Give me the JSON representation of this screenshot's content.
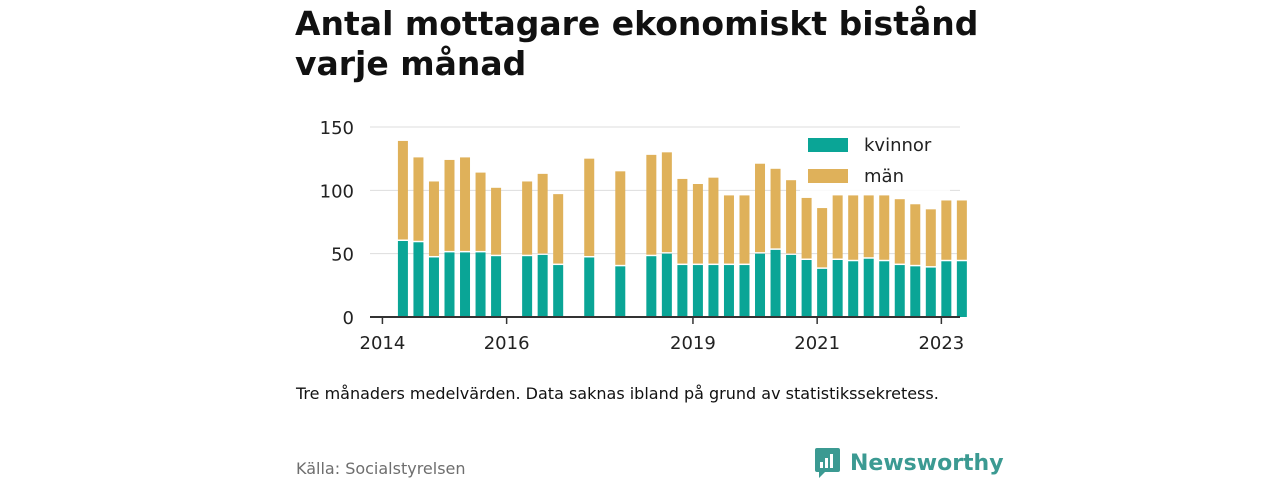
{
  "title": "Antal mottagare ekonomiskt bistånd varje månad",
  "note": "Tre månaders medelvärden. Data saknas ibland på grund av statistikssekretess.",
  "source": "Källa: Socialstyrelsen",
  "brand": {
    "name": "Newsworthy",
    "color": "#3b9a92"
  },
  "colors": {
    "kvinnor": "#0aa596",
    "man": "#dfb15a",
    "axis": "#333333",
    "grid": "#dddddd"
  },
  "chart_data": {
    "type": "bar",
    "stacked": true,
    "title": "Antal mottagare ekonomiskt bistånd varje månad",
    "xlabel": "",
    "ylabel": "",
    "ylim": [
      0,
      150
    ],
    "yticks": [
      0,
      50,
      100,
      150
    ],
    "x_range": [
      2013.8,
      2023.3
    ],
    "xticks": [
      {
        "value": 2014.0,
        "label": "2014"
      },
      {
        "value": 2016.0,
        "label": "2016"
      },
      {
        "value": 2019.0,
        "label": "2019"
      },
      {
        "value": 2021.0,
        "label": "2021"
      },
      {
        "value": 2023.0,
        "label": "2023"
      }
    ],
    "grid": true,
    "legend_position": "top-right",
    "x": [
      2014.33,
      2014.58,
      2014.83,
      2015.08,
      2015.33,
      2015.58,
      2015.83,
      2016.33,
      2016.58,
      2016.83,
      2017.33,
      2017.83,
      2018.33,
      2018.58,
      2018.83,
      2019.08,
      2019.33,
      2019.58,
      2019.83,
      2020.08,
      2020.33,
      2020.58,
      2020.83,
      2021.08,
      2021.33,
      2021.58,
      2021.83,
      2022.08,
      2022.33,
      2022.58,
      2022.83,
      2023.08,
      2023.33
    ],
    "series": [
      {
        "name": "kvinnor",
        "values": [
          60,
          59,
          47,
          51,
          51,
          51,
          48,
          48,
          49,
          41,
          47,
          40,
          48,
          50,
          41,
          41,
          41,
          41,
          41,
          50,
          53,
          49,
          45,
          38,
          45,
          44,
          46,
          44,
          41,
          40,
          39,
          44,
          44
        ]
      },
      {
        "name": "män",
        "values": [
          79,
          67,
          60,
          73,
          75,
          63,
          54,
          59,
          64,
          56,
          78,
          75,
          80,
          80,
          68,
          64,
          69,
          55,
          55,
          71,
          64,
          59,
          49,
          48,
          51,
          52,
          50,
          52,
          52,
          49,
          46,
          48,
          48
        ]
      }
    ]
  }
}
